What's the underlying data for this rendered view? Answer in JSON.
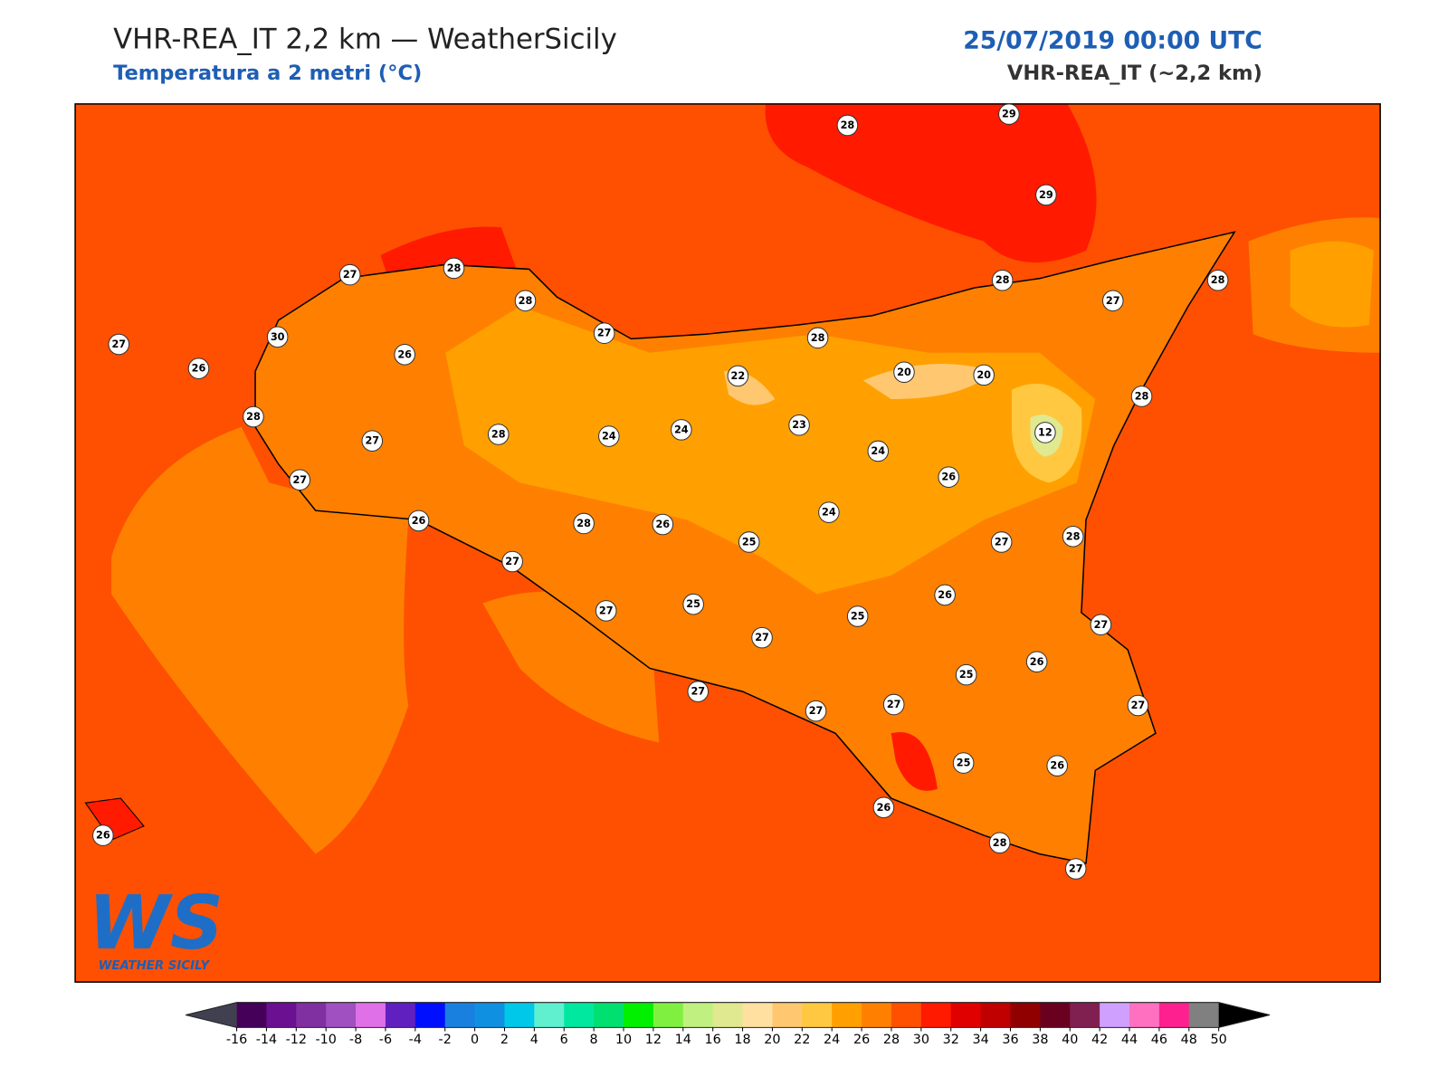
{
  "header": {
    "title": "VHR-REA_IT 2,2 km — WeatherSicily",
    "subtitle": "Temperatura a 2 metri (°C)",
    "datetime": "25/07/2019 00:00 UTC",
    "model": "VHR-REA_IT (~2,2 km)"
  },
  "map": {
    "stations": [
      28,
      29,
      29,
      27,
      28,
      28,
      27,
      27,
      26,
      30,
      26,
      28,
      27,
      27,
      28,
      24,
      24,
      22,
      23,
      28,
      20,
      20,
      28,
      27,
      28,
      28,
      12,
      24,
      26,
      24,
      26,
      28,
      26,
      25,
      27,
      28,
      27,
      27,
      25,
      25,
      27,
      26,
      27,
      25,
      26,
      27,
      27,
      27,
      27,
      25,
      26,
      26,
      28,
      27,
      26
    ]
  },
  "colorbar": {
    "ticks": [
      -16,
      -14,
      -12,
      -10,
      -8,
      -6,
      -4,
      -2,
      0,
      2,
      4,
      6,
      8,
      10,
      12,
      14,
      16,
      18,
      20,
      22,
      24,
      26,
      28,
      30,
      32,
      34,
      36,
      38,
      40,
      42,
      44,
      46,
      48,
      50
    ],
    "colors": [
      "#45005a",
      "#6a1090",
      "#8030a0",
      "#a050c0",
      "#e070e8",
      "#6020c0",
      "#0010ff",
      "#1a80e0",
      "#1090e0",
      "#00c8e8",
      "#60f0d0",
      "#00e8a0",
      "#00e070",
      "#00f000",
      "#80f040",
      "#c0f080",
      "#e0e890",
      "#ffe0a0",
      "#ffc870",
      "#ffc840",
      "#ffa000",
      "#ff8000",
      "#ff5000",
      "#ff1a00",
      "#e00000",
      "#c00000",
      "#900000",
      "#6a0020",
      "#802050",
      "#d0a0ff",
      "#ff70c0",
      "#ff2090",
      "#808080",
      "#383838"
    ],
    "under_color": "#404050",
    "over_color": "#000000"
  },
  "logo": {
    "text": "WS",
    "caption": "WEATHER SICILY"
  }
}
